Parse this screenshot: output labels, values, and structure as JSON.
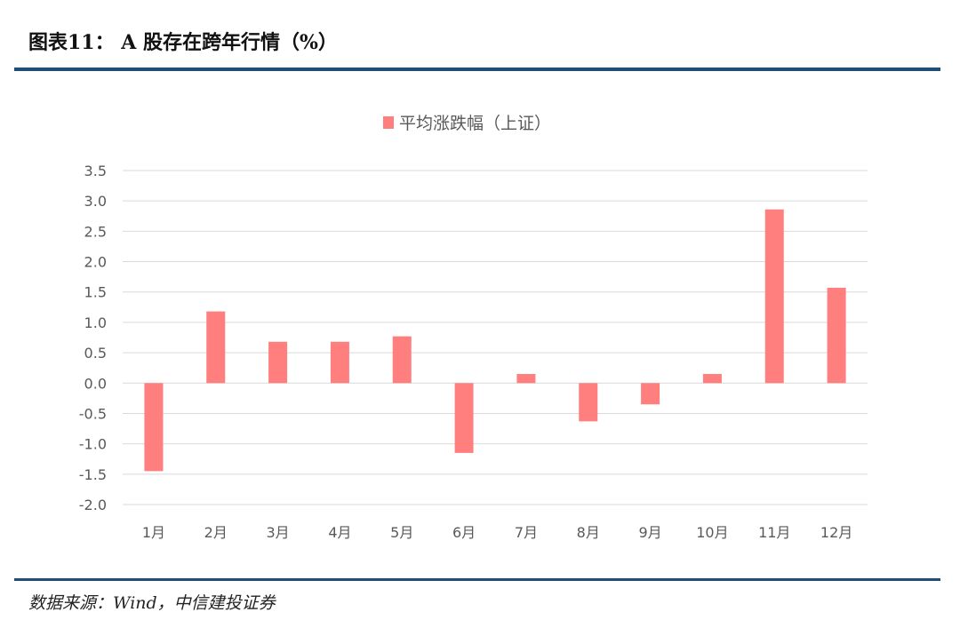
{
  "figure": {
    "title": "图表11：  A 股存在跨年行情（%）",
    "source": "数据来源：Wind，中信建投证券"
  },
  "colors": {
    "bar": "#ff7f7f",
    "grid": "#d9d9d9",
    "rule": "#1f4e79",
    "tick_text": "#595959"
  },
  "chart_data": {
    "type": "bar",
    "categories": [
      "1月",
      "2月",
      "3月",
      "4月",
      "5月",
      "6月",
      "7月",
      "8月",
      "9月",
      "10月",
      "11月",
      "12月"
    ],
    "series": [
      {
        "name": "平均涨跌幅（上证）",
        "values": [
          -1.45,
          1.18,
          0.68,
          0.68,
          0.77,
          -1.15,
          0.15,
          -0.63,
          -0.35,
          0.15,
          2.86,
          1.57
        ]
      }
    ],
    "ylim": [
      -2.0,
      3.5
    ],
    "yticks": [
      "3.5",
      "3.0",
      "2.5",
      "2.0",
      "1.5",
      "1.0",
      "0.5",
      "0.0",
      "-0.5",
      "-1.0",
      "-1.5",
      "-2.0"
    ],
    "grid": true,
    "legend": "top-center"
  }
}
